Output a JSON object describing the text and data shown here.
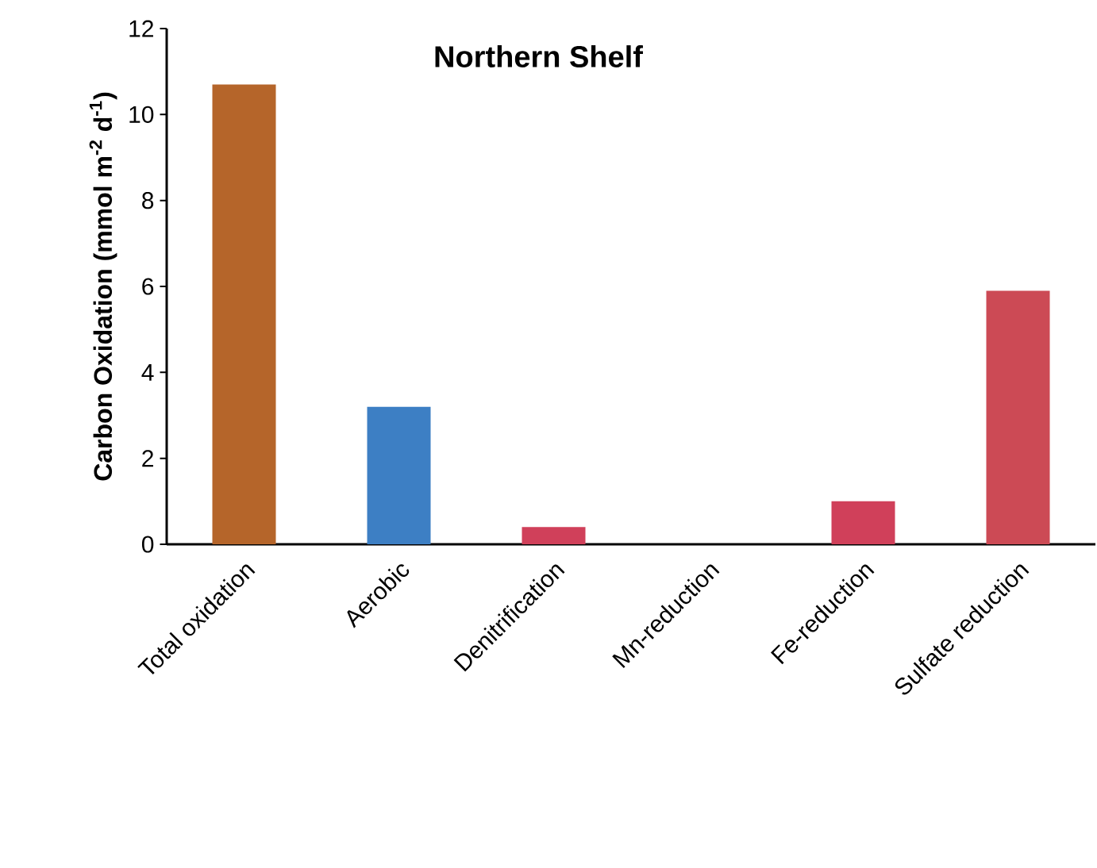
{
  "chart_data": {
    "type": "bar",
    "title": "Northern Shelf",
    "ylabel": "Carbon Oxidation (mmol m$^{-2}$ d$^{-1}$)",
    "categories": [
      "Total oxidation",
      "Aerobic",
      "Denitrification",
      "Mn-reduction",
      "Fe-reduction",
      "Sulfate reduction"
    ],
    "values": [
      10.7,
      3.2,
      0.4,
      0,
      1.0,
      5.9
    ],
    "colors": [
      "#b5652a",
      "#3d7fc4",
      "#d0405a",
      "#d0405a",
      "#d0405a",
      "#cc4a55"
    ],
    "ylim": [
      0,
      12
    ],
    "yticks": [
      0,
      2,
      4,
      6,
      8,
      10,
      12
    ],
    "grid": false
  }
}
